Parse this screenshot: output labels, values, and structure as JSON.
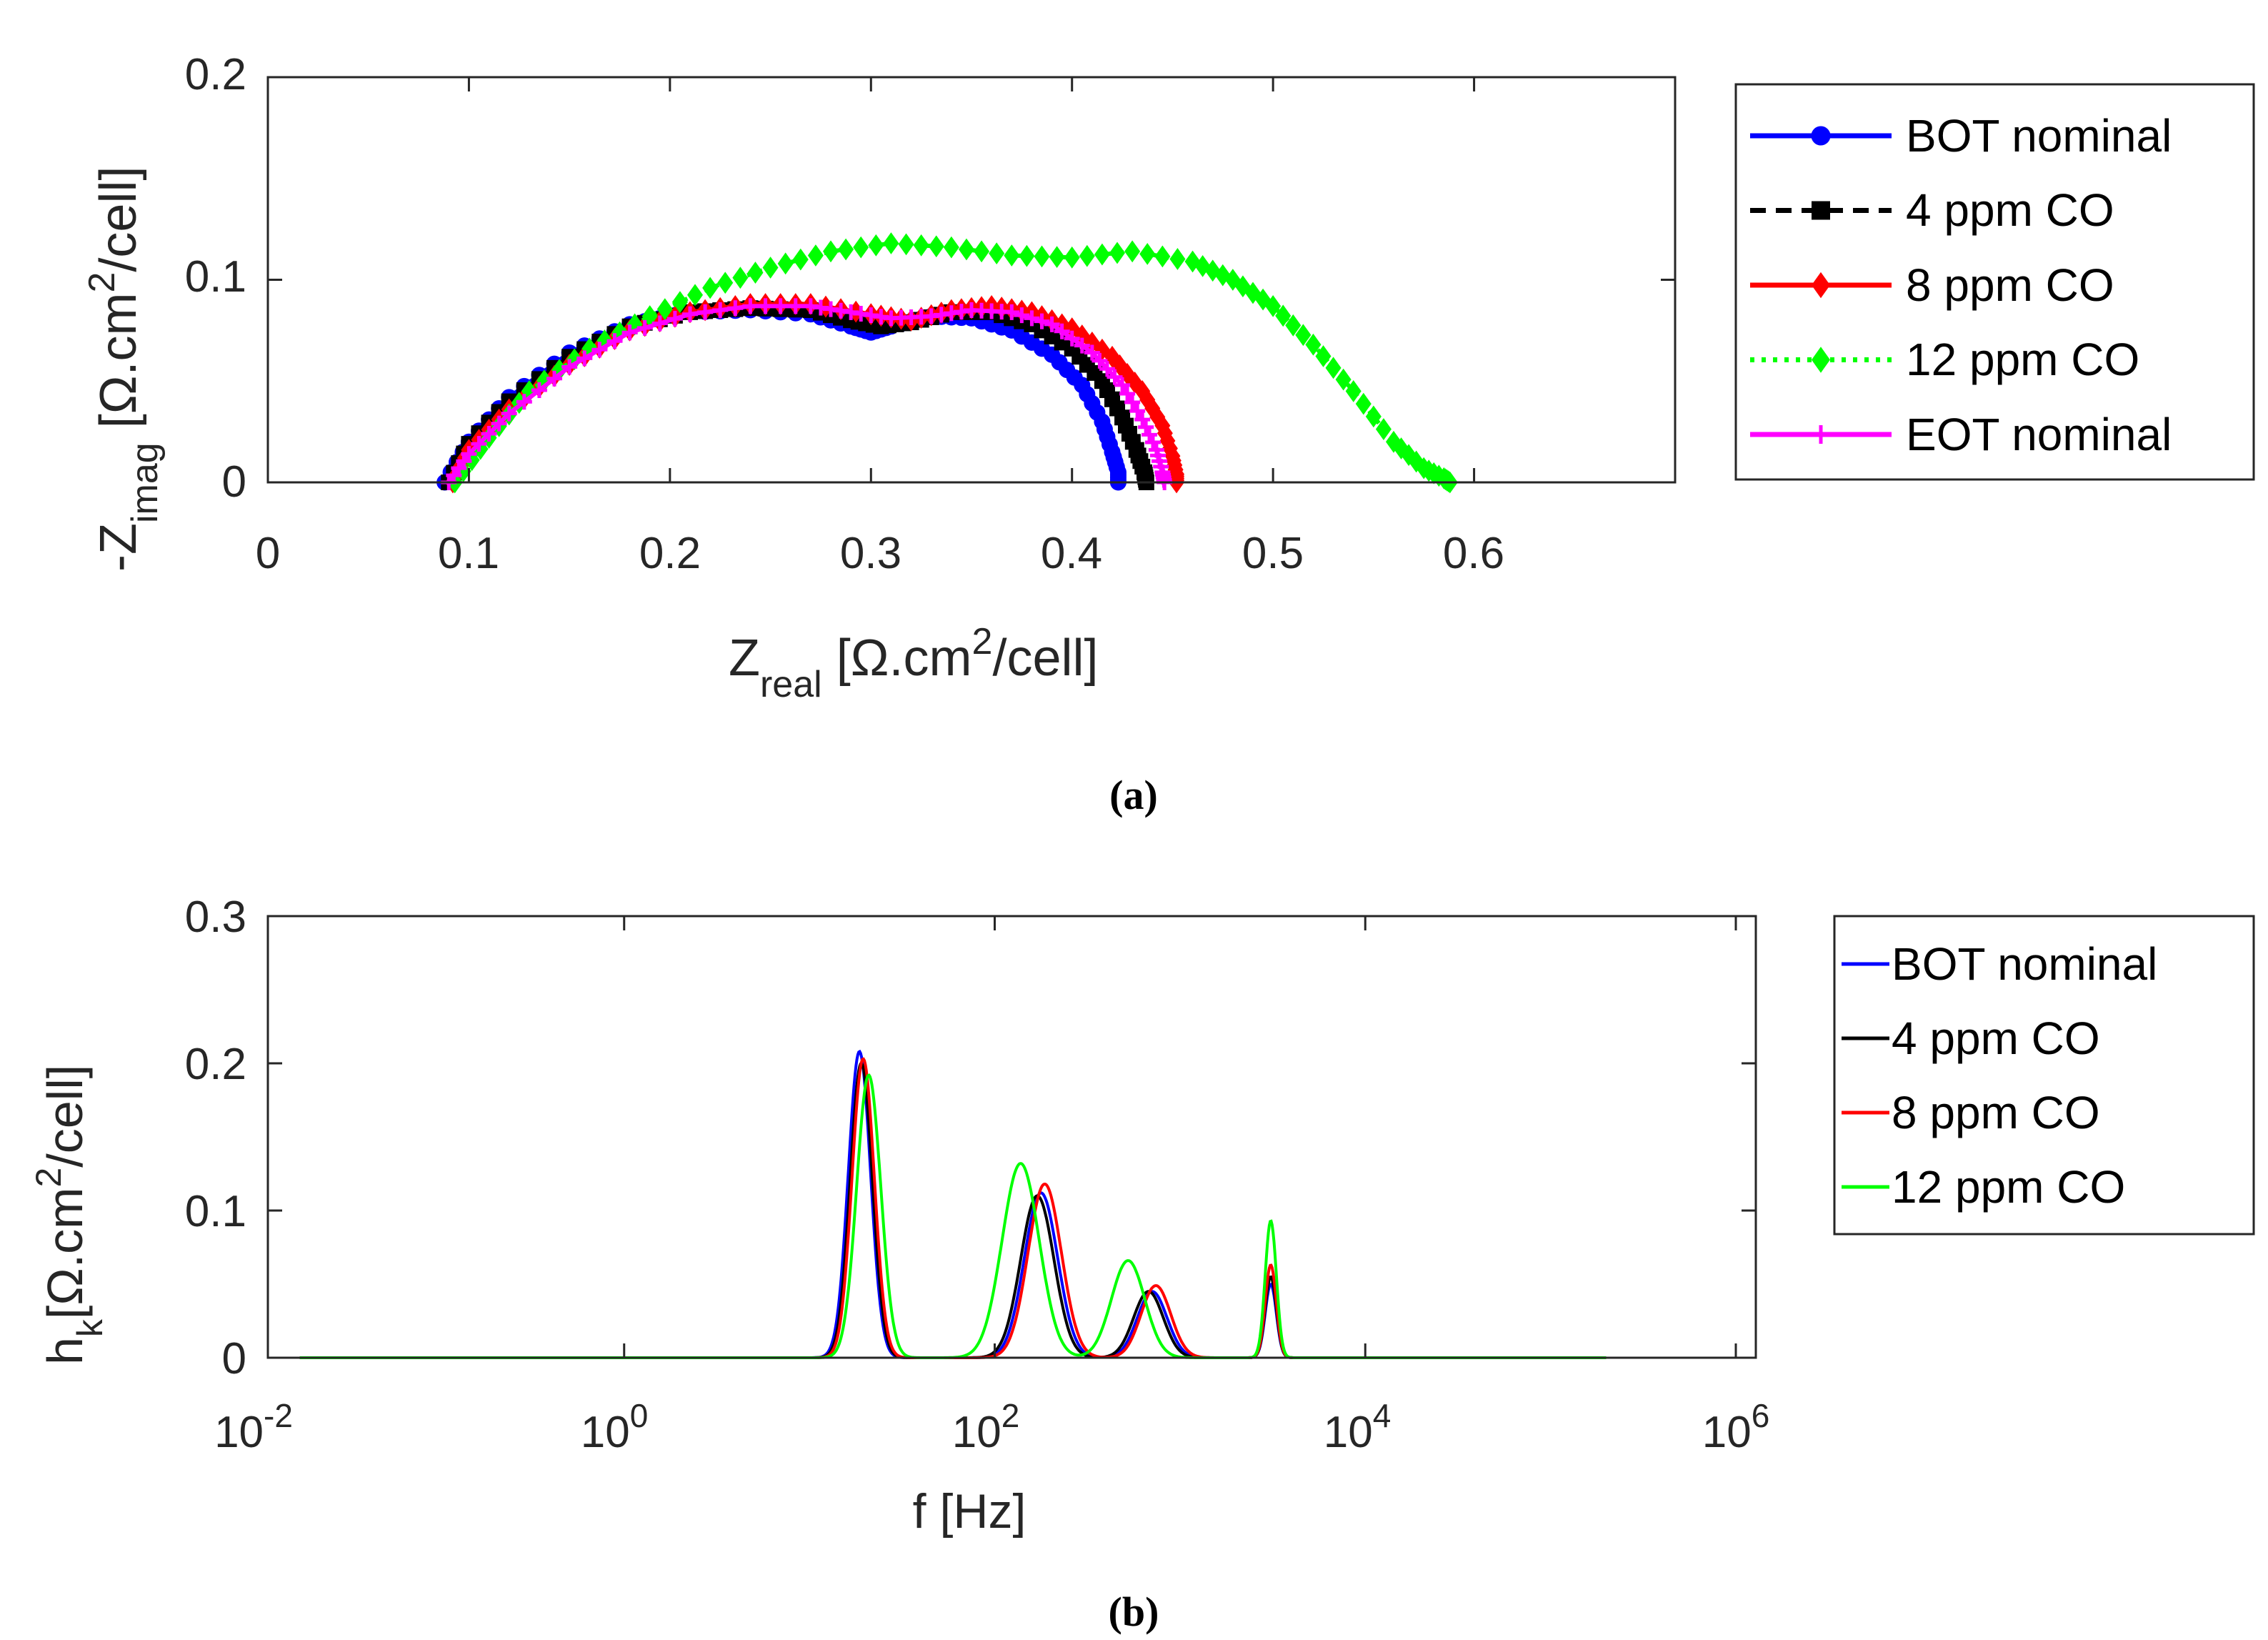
{
  "chart_data": [
    {
      "id": "a",
      "type": "scatter",
      "caption": "(a)",
      "xlim": [
        0,
        0.7
      ],
      "ylim": [
        0,
        0.2
      ],
      "xticks": [
        0,
        0.1,
        0.2,
        0.3,
        0.4,
        0.5,
        0.6
      ],
      "xtick_labels": [
        "0",
        "0.1",
        "0.2",
        "0.3",
        "0.4",
        "0.5",
        "0.6"
      ],
      "yticks": [
        0,
        0.1,
        0.2
      ],
      "ytick_labels": [
        "0",
        "0.1",
        "0.2"
      ],
      "xlabel": {
        "main": "Z",
        "sub": "real",
        "unit": " [Ω.cm",
        "sup": "2",
        "tail": "/cell]"
      },
      "ylabel": {
        "main": "-Z",
        "sub": "imag",
        "unit": " [Ω.cm",
        "sup": "2",
        "tail": "/cell]"
      },
      "legend_position": "outside-right",
      "series": [
        {
          "name": "BOT nominal",
          "color": "#0000ff",
          "line": "solid",
          "marker": "circle",
          "x": [
            0.088,
            0.1,
            0.12,
            0.15,
            0.18,
            0.21,
            0.24,
            0.27,
            0.29,
            0.3,
            0.31,
            0.33,
            0.35,
            0.37,
            0.39,
            0.405,
            0.415,
            0.42,
            0.423,
            0.423
          ],
          "y": [
            0,
            0.02,
            0.042,
            0.064,
            0.078,
            0.084,
            0.085,
            0.083,
            0.077,
            0.074,
            0.077,
            0.082,
            0.081,
            0.075,
            0.063,
            0.048,
            0.03,
            0.015,
            0.005,
            0
          ]
        },
        {
          "name": "4 ppm CO",
          "color": "#000000",
          "line": "dashed",
          "marker": "square",
          "x": [
            0.09,
            0.1,
            0.12,
            0.15,
            0.18,
            0.21,
            0.24,
            0.27,
            0.29,
            0.305,
            0.32,
            0.34,
            0.36,
            0.38,
            0.4,
            0.415,
            0.425,
            0.432,
            0.436,
            0.437
          ],
          "y": [
            0,
            0.019,
            0.04,
            0.062,
            0.077,
            0.084,
            0.086,
            0.085,
            0.08,
            0.077,
            0.079,
            0.084,
            0.084,
            0.078,
            0.066,
            0.05,
            0.032,
            0.016,
            0.005,
            0
          ]
        },
        {
          "name": "8 ppm CO",
          "color": "#ff0000",
          "line": "solid",
          "marker": "diamond",
          "x": [
            0.092,
            0.1,
            0.12,
            0.15,
            0.18,
            0.21,
            0.24,
            0.27,
            0.3,
            0.32,
            0.34,
            0.36,
            0.38,
            0.4,
            0.42,
            0.435,
            0.445,
            0.45,
            0.452,
            0.452
          ],
          "y": [
            0,
            0.016,
            0.036,
            0.058,
            0.075,
            0.084,
            0.088,
            0.088,
            0.083,
            0.08,
            0.085,
            0.087,
            0.084,
            0.076,
            0.062,
            0.045,
            0.028,
            0.013,
            0.004,
            0
          ]
        },
        {
          "name": "12 ppm CO",
          "color": "#00ff00",
          "line": "dotted",
          "marker": "diamond",
          "x": [
            0.093,
            0.11,
            0.13,
            0.16,
            0.19,
            0.22,
            0.25,
            0.28,
            0.31,
            0.34,
            0.37,
            0.4,
            0.43,
            0.46,
            0.48,
            0.5,
            0.52,
            0.54,
            0.56,
            0.575,
            0.585,
            0.588
          ],
          "y": [
            0,
            0.022,
            0.045,
            0.066,
            0.082,
            0.096,
            0.106,
            0.114,
            0.118,
            0.116,
            0.112,
            0.111,
            0.114,
            0.109,
            0.1,
            0.087,
            0.068,
            0.045,
            0.02,
            0.007,
            0.002,
            0
          ]
        },
        {
          "name": "EOT nominal",
          "color": "#ff00ff",
          "line": "solid",
          "marker": "plus",
          "x": [
            0.09,
            0.1,
            0.12,
            0.15,
            0.18,
            0.21,
            0.24,
            0.27,
            0.29,
            0.31,
            0.33,
            0.35,
            0.37,
            0.39,
            0.41,
            0.425,
            0.435,
            0.442,
            0.445,
            0.446
          ],
          "y": [
            0,
            0.014,
            0.034,
            0.057,
            0.074,
            0.083,
            0.087,
            0.087,
            0.084,
            0.081,
            0.082,
            0.085,
            0.084,
            0.078,
            0.064,
            0.048,
            0.031,
            0.016,
            0.005,
            0
          ]
        }
      ]
    },
    {
      "id": "b",
      "type": "line",
      "caption": "(b)",
      "xscale": "log",
      "xlim_exp": [
        -2,
        6
      ],
      "ylim": [
        0,
        0.3
      ],
      "xticks_exp": [
        -2,
        0,
        2,
        4,
        6
      ],
      "xtick_base": "10",
      "xtick_exponents": [
        "-2",
        "0",
        "2",
        "4",
        "6"
      ],
      "yticks": [
        0,
        0.1,
        0.2,
        0.3
      ],
      "ytick_labels": [
        "0",
        "0.1",
        "0.2",
        "0.3"
      ],
      "xlabel": "f [Hz]",
      "ylabel": {
        "main": "h",
        "sub": "k",
        "unit": "[Ω.cm",
        "sup": "2",
        "tail": "/cell]"
      },
      "x_range_exp": [
        -1.75,
        5.3
      ],
      "legend_position": "outside-right",
      "series": [
        {
          "name": "BOT nominal",
          "color": "#0000ff",
          "peaks": [
            {
              "log_f": 1.27,
              "h": 0.208,
              "w": 0.06
            },
            {
              "log_f": 2.25,
              "h": 0.112,
              "w": 0.09
            },
            {
              "log_f": 2.85,
              "h": 0.045,
              "w": 0.08
            },
            {
              "log_f": 3.49,
              "h": 0.05,
              "w": 0.03
            }
          ]
        },
        {
          "name": "4 ppm CO",
          "color": "#000000",
          "peaks": [
            {
              "log_f": 1.28,
              "h": 0.2,
              "w": 0.06
            },
            {
              "log_f": 2.23,
              "h": 0.11,
              "w": 0.09
            },
            {
              "log_f": 2.83,
              "h": 0.045,
              "w": 0.08
            },
            {
              "log_f": 3.49,
              "h": 0.055,
              "w": 0.03
            }
          ]
        },
        {
          "name": "8 ppm CO",
          "color": "#ff0000",
          "peaks": [
            {
              "log_f": 1.29,
              "h": 0.203,
              "w": 0.06
            },
            {
              "log_f": 2.27,
              "h": 0.118,
              "w": 0.09
            },
            {
              "log_f": 2.87,
              "h": 0.049,
              "w": 0.08
            },
            {
              "log_f": 3.49,
              "h": 0.063,
              "w": 0.03
            }
          ]
        },
        {
          "name": "12 ppm CO",
          "color": "#00ff00",
          "peaks": [
            {
              "log_f": 1.32,
              "h": 0.192,
              "w": 0.065
            },
            {
              "log_f": 2.14,
              "h": 0.132,
              "w": 0.1
            },
            {
              "log_f": 2.72,
              "h": 0.066,
              "w": 0.09
            },
            {
              "log_f": 3.49,
              "h": 0.093,
              "w": 0.03
            }
          ]
        }
      ]
    }
  ]
}
